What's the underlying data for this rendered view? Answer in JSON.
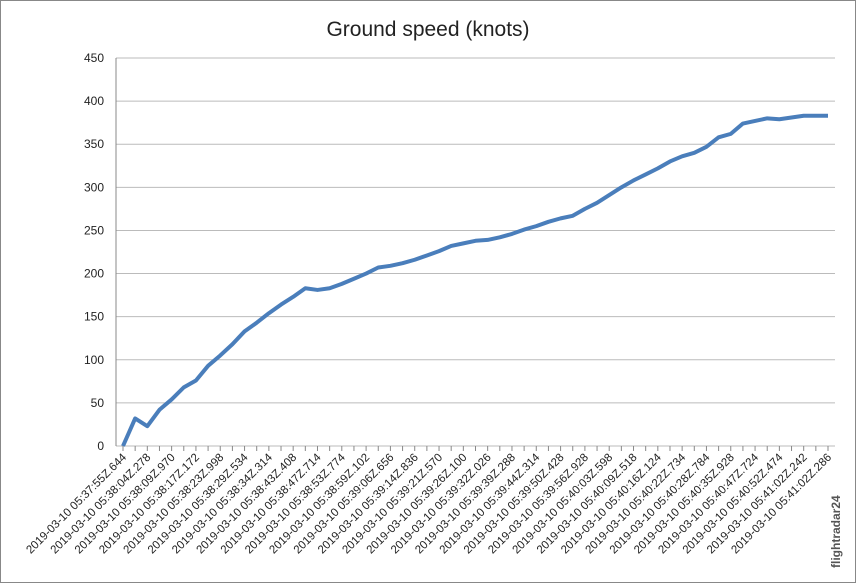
{
  "chart_data": {
    "type": "line",
    "title": "Ground speed (knots)",
    "watermark": "flightradar24",
    "categories": [
      "2019-03-10 05:37:55Z.644",
      null,
      "2019-03-10 05:38:04Z.278",
      null,
      "2019-03-10 05:38:09Z.970",
      null,
      "2019-03-10 05:38:17Z.172",
      null,
      "2019-03-10 05:38:23Z.998",
      null,
      "2019-03-10 05:38:29Z.534",
      null,
      "2019-03-10 05:38:34Z.314",
      null,
      "2019-03-10 05:38:43Z.408",
      null,
      "2019-03-10 05:38:47Z.714",
      null,
      "2019-03-10 05:38:53Z.774",
      null,
      "2019-03-10 05:38:59Z.102",
      null,
      "2019-03-10 05:39:06Z.656",
      null,
      "2019-03-10 05:39:14Z.836",
      null,
      "2019-03-10 05:39:21Z.570",
      null,
      "2019-03-10 05:39:26Z.100",
      null,
      "2019-03-10 05:39:32Z.026",
      null,
      "2019-03-10 05:39:39Z.288",
      null,
      "2019-03-10 05:39:44Z.314",
      null,
      "2019-03-10 05:39:50Z.428",
      null,
      "2019-03-10 05:39:56Z.928",
      null,
      "2019-03-10 05:40:03Z.598",
      null,
      "2019-03-10 05:40:09Z.518",
      null,
      "2019-03-10 05:40:16Z.124",
      null,
      "2019-03-10 05:40:22Z.734",
      null,
      "2019-03-10 05:40:28Z.784",
      null,
      "2019-03-10 05:40:35Z.928",
      null,
      "2019-03-10 05:40:47Z.724",
      null,
      "2019-03-10 05:40:52Z.474",
      null,
      "2019-03-10 05:41:02Z.242",
      null,
      "2019-03-10 05:41:02Z.286"
    ],
    "values": [
      0,
      32,
      23,
      42,
      54,
      68,
      76,
      93,
      105,
      118,
      133,
      143,
      154,
      164,
      173,
      183,
      181,
      183,
      188,
      194,
      200,
      207,
      209,
      212,
      216,
      221,
      226,
      232,
      235,
      238,
      239,
      242,
      246,
      251,
      255,
      260,
      264,
      267,
      275,
      282,
      291,
      300,
      308,
      315,
      322,
      330,
      336,
      340,
      347,
      358,
      362,
      374,
      377,
      380,
      379,
      381,
      383,
      383,
      383
    ],
    "color": "#4a7ebb",
    "ylim": [
      0,
      450
    ],
    "yticks": [
      0,
      50,
      100,
      150,
      200,
      250,
      300,
      350,
      400,
      450
    ],
    "grid": true
  }
}
